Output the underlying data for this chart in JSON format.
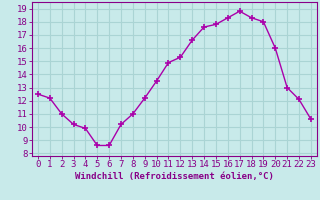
{
  "hours": [
    0,
    1,
    2,
    3,
    4,
    5,
    6,
    7,
    8,
    9,
    10,
    11,
    12,
    13,
    14,
    15,
    16,
    17,
    18,
    19,
    20,
    21,
    22,
    23
  ],
  "values": [
    12.5,
    12.2,
    11.0,
    10.2,
    9.9,
    8.6,
    8.6,
    10.2,
    11.0,
    12.2,
    13.5,
    14.9,
    15.3,
    16.6,
    17.6,
    17.8,
    18.3,
    18.8,
    18.3,
    18.0,
    16.0,
    13.0,
    12.1,
    10.6
  ],
  "line_color": "#aa00aa",
  "marker": "+",
  "bg_color": "#c8eaea",
  "grid_color": "#aad4d4",
  "xlabel": "Windchill (Refroidissement éolien,°C)",
  "ylabel_ticks": [
    8,
    9,
    10,
    11,
    12,
    13,
    14,
    15,
    16,
    17,
    18,
    19
  ],
  "ylim": [
    7.8,
    19.5
  ],
  "xlim": [
    -0.5,
    23.5
  ],
  "tick_color": "#880088",
  "label_fontsize": 6.5,
  "tick_fontsize": 6.5
}
